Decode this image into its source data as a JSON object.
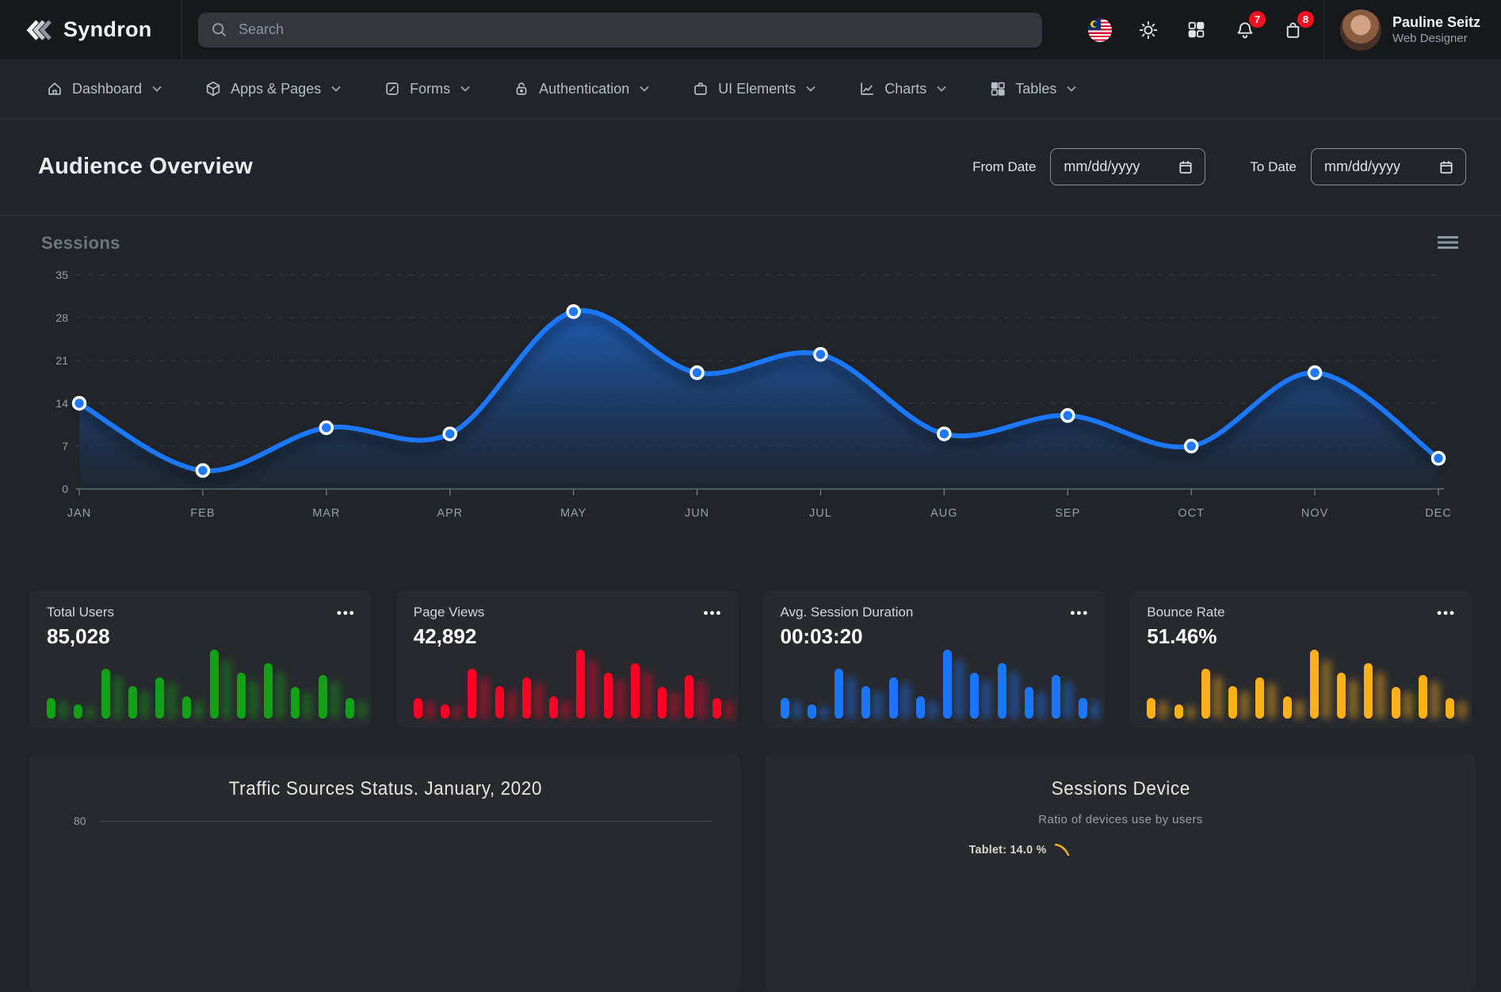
{
  "topbar": {
    "brand": "Syndron",
    "search": {
      "placeholder": "Search"
    },
    "icons": [
      "malaysia-flag-icon",
      "sun-theme-icon",
      "apps-grid-icon",
      "notifications-bell-icon",
      "shopping-bag-icon"
    ],
    "notifications_badge": "7",
    "cart_badge": "8",
    "badge_color": "#f80f1f",
    "user": {
      "name": "Pauline Seitz",
      "role": "Web Designer"
    }
  },
  "nav": {
    "items": [
      {
        "label": "Dashboard",
        "icon": "home-icon"
      },
      {
        "label": "Apps & Pages",
        "icon": "cube-icon"
      },
      {
        "label": "Forms",
        "icon": "form-icon"
      },
      {
        "label": "Authentication",
        "icon": "lock-icon"
      },
      {
        "label": "UI Elements",
        "icon": "briefcase-icon"
      },
      {
        "label": "Charts",
        "icon": "chart-icon"
      },
      {
        "label": "Tables",
        "icon": "table-grid-icon"
      }
    ]
  },
  "page": {
    "title": "Audience Overview",
    "from_date_label": "From Date",
    "to_date_label": "To Date",
    "date_placeholder": "mm/dd/yyyy"
  },
  "sessions_panel": {
    "title": "Sessions"
  },
  "glyphs": {
    "options_menu": "•••"
  },
  "stats": [
    {
      "label": "Total Users",
      "value": "85,028",
      "color": "#12a114"
    },
    {
      "label": "Page Views",
      "value": "42,892",
      "color": "#fb0124"
    },
    {
      "label": "Avg. Session Duration",
      "value": "00:03:20",
      "color": "#1a75ff"
    },
    {
      "label": "Bounce Rate",
      "value": "51.46%",
      "color": "#feb019"
    }
  ],
  "bottom": {
    "traffic": {
      "title": "Traffic Sources Status. January, 2020",
      "visible_ytick": "80"
    },
    "device": {
      "title": "Sessions Device",
      "subtitle": "Ratio of devices use by users",
      "annotation": "Tablet: 14.0 %"
    }
  },
  "chart_data": [
    {
      "id": "sessions",
      "type": "area",
      "title": "Sessions",
      "categories": [
        "JAN",
        "FEB",
        "MAR",
        "APR",
        "MAY",
        "JUN",
        "JUL",
        "AUG",
        "SEP",
        "OCT",
        "NOV",
        "DEC"
      ],
      "values": [
        14,
        3,
        10,
        9,
        29,
        19,
        22,
        9,
        12,
        7,
        19,
        5
      ],
      "ylim": [
        0,
        35
      ],
      "yticks": [
        0,
        7,
        14,
        21,
        28,
        35
      ],
      "grid": "horizontal-dashed",
      "legend": "none",
      "line_color": "#1f78ff",
      "marker_color": "#1f78ff",
      "marker_ring": "#ffffff"
    },
    {
      "id": "stat-sparkline",
      "type": "bar",
      "x": [
        1,
        2,
        3,
        4,
        5,
        6,
        7,
        8,
        9,
        10,
        11,
        12
      ],
      "values": [
        28,
        20,
        68,
        45,
        57,
        30,
        95,
        63,
        76,
        44,
        60,
        28
      ],
      "ylim": [
        0,
        100
      ],
      "colors": [
        "#12a114",
        "#fb0124",
        "#1a75ff",
        "#feb019"
      ]
    },
    {
      "id": "traffic-sources",
      "type": "line",
      "title": "Traffic Sources Status. January, 2020",
      "yticks_visible": [
        80
      ]
    },
    {
      "id": "sessions-device",
      "type": "donut",
      "title": "Sessions Device",
      "subtitle": "Ratio of devices use by users",
      "labels_visible": [
        "Tablet: 14.0 %"
      ],
      "slice_values": [
        14.0
      ]
    }
  ]
}
